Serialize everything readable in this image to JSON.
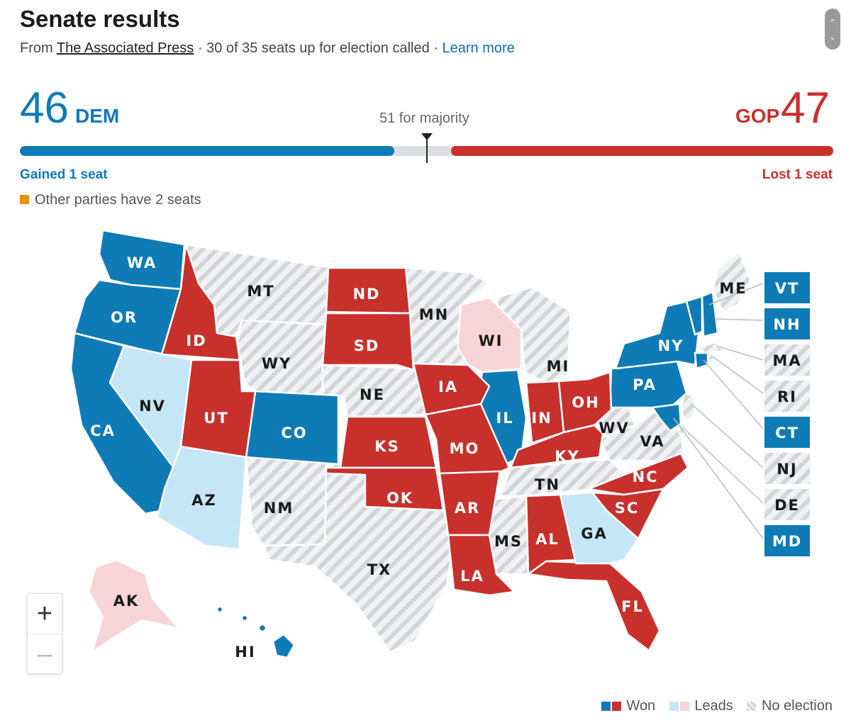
{
  "header": {
    "title": "Senate results",
    "from_label": "From",
    "source": "The Associated Press",
    "called_text": "· 30 of 35 seats up for election called ·",
    "learn_more": "Learn more"
  },
  "scoreboard": {
    "dem_count": "46",
    "dem_label": "DEM",
    "gop_count": "47",
    "gop_label": "GOP",
    "majority_label": "51 for majority",
    "dem_change": "Gained 1 seat",
    "gop_change": "Lost 1 seat",
    "other_note": "Other parties have 2 seats",
    "dem_seats": 46,
    "gop_seats": 47,
    "total_seats": 100
  },
  "colors": {
    "dem_won": "#0f7bb6",
    "gop_won": "#c8302c",
    "dem_leads": "#c5e6f7",
    "gop_leads": "#f7d4d6",
    "other_party": "#e8910c",
    "no_election": "#e2e3e6"
  },
  "states": {
    "WA": "WA",
    "OR": "OR",
    "CA": "CA",
    "NV": "NV",
    "ID": "ID",
    "MT": "MT",
    "WY": "WY",
    "UT": "UT",
    "AZ": "AZ",
    "CO": "CO",
    "NM": "NM",
    "ND": "ND",
    "SD": "SD",
    "NE": "NE",
    "KS": "KS",
    "OK": "OK",
    "TX": "TX",
    "MN": "MN",
    "IA": "IA",
    "MO": "MO",
    "AR": "AR",
    "LA": "LA",
    "WI": "WI",
    "IL": "IL",
    "MS": "MS",
    "MI": "MI",
    "IN": "IN",
    "KY": "KY",
    "TN": "TN",
    "AL": "AL",
    "OH": "OH",
    "GA": "GA",
    "FL": "FL",
    "WV": "WV",
    "VA": "VA",
    "NC": "NC",
    "SC": "SC",
    "PA": "PA",
    "NY": "NY",
    "ME": "ME",
    "AK": "AK",
    "HI": "HI"
  },
  "small_states": {
    "VT": "VT",
    "NH": "NH",
    "MA": "MA",
    "RI": "RI",
    "CT": "CT",
    "NJ": "NJ",
    "DE": "DE",
    "MD": "MD"
  },
  "controls": {
    "zoom_in": "+",
    "zoom_out": "–"
  },
  "legend": {
    "won": "Won",
    "leads": "Leads",
    "no_election": "No election"
  }
}
